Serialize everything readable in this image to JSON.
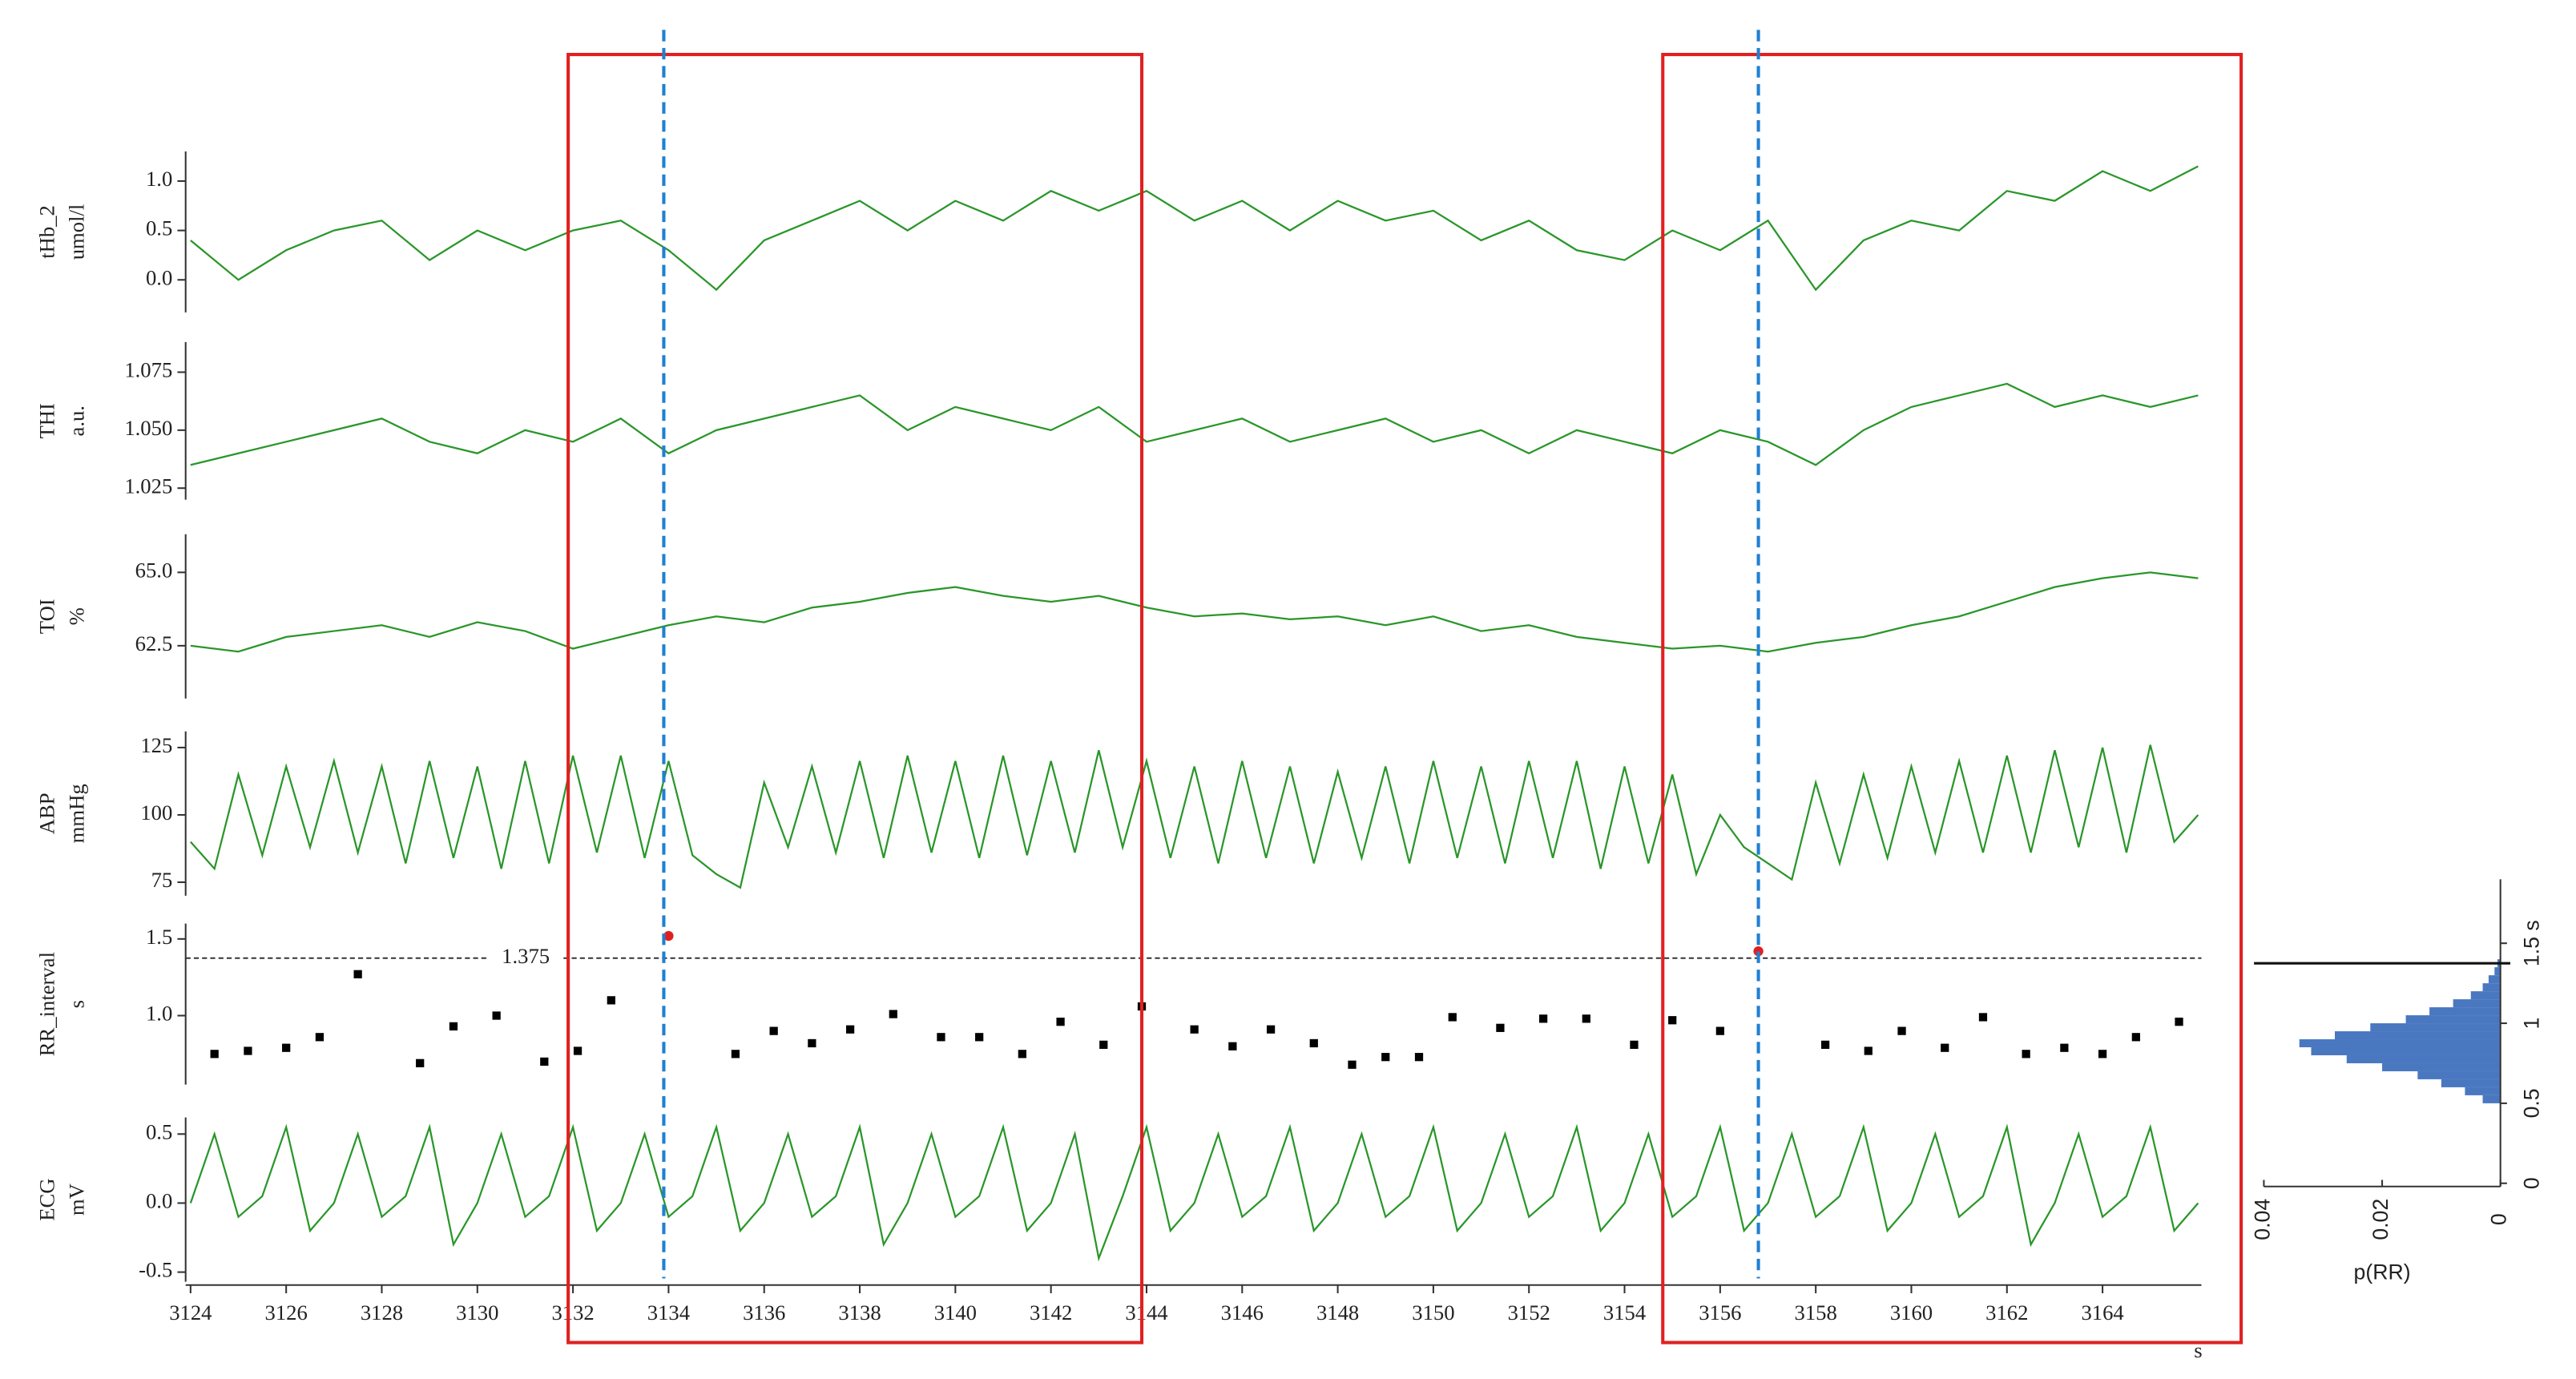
{
  "chart_data": [
    {
      "type": "line",
      "ylabel": "tHb_2",
      "yunit": "umol/l",
      "color": "#2a962a",
      "xlim": [
        3124,
        3166
      ],
      "ylim": [
        -0.33,
        1.3
      ],
      "yticks": [
        {
          "value": 0,
          "label": "0.0"
        },
        {
          "value": 0.5,
          "label": "0.5"
        },
        {
          "value": 1,
          "label": "1.0"
        }
      ],
      "x": [
        3124,
        3125,
        3126,
        3127,
        3128,
        3129,
        3130,
        3131,
        3132,
        3133,
        3134,
        3135,
        3136,
        3137,
        3138,
        3139,
        3140,
        3141,
        3142,
        3143,
        3144,
        3145,
        3146,
        3147,
        3148,
        3149,
        3150,
        3151,
        3152,
        3153,
        3154,
        3155,
        3156,
        3157,
        3158,
        3159,
        3160,
        3161,
        3162,
        3163,
        3164,
        3165,
        3166
      ],
      "values": [
        0.4,
        0.0,
        0.3,
        0.5,
        0.6,
        0.2,
        0.5,
        0.3,
        0.5,
        0.6,
        0.3,
        -0.1,
        0.4,
        0.6,
        0.8,
        0.5,
        0.8,
        0.6,
        0.9,
        0.7,
        0.9,
        0.6,
        0.8,
        0.5,
        0.8,
        0.6,
        0.7,
        0.4,
        0.6,
        0.3,
        0.2,
        0.5,
        0.3,
        0.6,
        -0.1,
        0.4,
        0.6,
        0.5,
        0.9,
        0.8,
        1.1,
        0.9,
        1.15
      ]
    },
    {
      "type": "line",
      "ylabel": "THI",
      "yunit": "a.u.",
      "color": "#2a962a",
      "xlim": [
        3124,
        3166
      ],
      "ylim": [
        1.02,
        1.088
      ],
      "yticks": [
        1.025,
        {
          "value": 1.05,
          "label": "1.050"
        },
        1.075
      ],
      "x": [
        3124,
        3125,
        3126,
        3127,
        3128,
        3129,
        3130,
        3131,
        3132,
        3133,
        3134,
        3135,
        3136,
        3137,
        3138,
        3139,
        3140,
        3141,
        3142,
        3143,
        3144,
        3145,
        3146,
        3147,
        3148,
        3149,
        3150,
        3151,
        3152,
        3153,
        3154,
        3155,
        3156,
        3157,
        3158,
        3159,
        3160,
        3161,
        3162,
        3163,
        3164,
        3165,
        3166
      ],
      "values": [
        1.035,
        1.04,
        1.045,
        1.05,
        1.055,
        1.045,
        1.04,
        1.05,
        1.045,
        1.055,
        1.04,
        1.05,
        1.055,
        1.06,
        1.065,
        1.05,
        1.06,
        1.055,
        1.05,
        1.06,
        1.045,
        1.05,
        1.055,
        1.045,
        1.05,
        1.055,
        1.045,
        1.05,
        1.04,
        1.05,
        1.045,
        1.04,
        1.05,
        1.045,
        1.035,
        1.05,
        1.06,
        1.065,
        1.07,
        1.06,
        1.065,
        1.06,
        1.065
      ]
    },
    {
      "type": "line",
      "ylabel": "TOI",
      "yunit": "%",
      "color": "#2a962a",
      "xlim": [
        3124,
        3166
      ],
      "ylim": [
        60.7,
        66.3
      ],
      "yticks": [
        62.5,
        {
          "value": 65,
          "label": "65.0"
        }
      ],
      "x": [
        3124,
        3125,
        3126,
        3127,
        3128,
        3129,
        3130,
        3131,
        3132,
        3133,
        3134,
        3135,
        3136,
        3137,
        3138,
        3139,
        3140,
        3141,
        3142,
        3143,
        3144,
        3145,
        3146,
        3147,
        3148,
        3149,
        3150,
        3151,
        3152,
        3153,
        3154,
        3155,
        3156,
        3157,
        3158,
        3159,
        3160,
        3161,
        3162,
        3163,
        3164,
        3165,
        3166
      ],
      "values": [
        62.5,
        62.3,
        62.8,
        63.0,
        63.2,
        62.8,
        63.3,
        63.0,
        62.4,
        62.8,
        63.2,
        63.5,
        63.3,
        63.8,
        64.0,
        64.3,
        64.5,
        64.2,
        64.0,
        64.2,
        63.8,
        63.5,
        63.6,
        63.4,
        63.5,
        63.2,
        63.5,
        63.0,
        63.2,
        62.8,
        62.6,
        62.4,
        62.5,
        62.3,
        62.6,
        62.8,
        63.2,
        63.5,
        64.0,
        64.5,
        64.8,
        65.0,
        64.8
      ]
    },
    {
      "type": "line",
      "ylabel": "ABP",
      "yunit": "mmHg",
      "color": "#2a962a",
      "xlim": [
        3124,
        3166
      ],
      "ylim": [
        70,
        131
      ],
      "yticks": [
        75,
        100,
        125
      ],
      "x": [
        3124,
        3124.5,
        3125,
        3125.5,
        3126,
        3126.5,
        3127,
        3127.5,
        3128,
        3128.5,
        3129,
        3129.5,
        3130,
        3130.5,
        3131,
        3131.5,
        3132,
        3132.5,
        3133,
        3133.5,
        3134,
        3134.5,
        3135,
        3135.5,
        3136,
        3136.5,
        3137,
        3137.5,
        3138,
        3138.5,
        3139,
        3139.5,
        3140,
        3140.5,
        3141,
        3141.5,
        3142,
        3142.5,
        3143,
        3143.5,
        3144,
        3144.5,
        3145,
        3145.5,
        3146,
        3146.5,
        3147,
        3147.5,
        3148,
        3148.5,
        3149,
        3149.5,
        3150,
        3150.5,
        3151,
        3151.5,
        3152,
        3152.5,
        3153,
        3153.5,
        3154,
        3154.5,
        3155,
        3155.5,
        3156,
        3156.5,
        3157,
        3157.5,
        3158,
        3158.5,
        3159,
        3159.5,
        3160,
        3160.5,
        3161,
        3161.5,
        3162,
        3162.5,
        3163,
        3163.5,
        3164,
        3164.5,
        3165,
        3165.5,
        3166
      ],
      "values": [
        90,
        80,
        115,
        85,
        118,
        88,
        120,
        86,
        118,
        82,
        120,
        84,
        118,
        80,
        120,
        82,
        122,
        86,
        122,
        84,
        120,
        85,
        78,
        73,
        112,
        88,
        118,
        86,
        120,
        84,
        122,
        86,
        120,
        84,
        122,
        85,
        120,
        86,
        124,
        88,
        120,
        84,
        118,
        82,
        120,
        84,
        118,
        82,
        116,
        84,
        118,
        82,
        120,
        84,
        118,
        82,
        120,
        84,
        120,
        80,
        118,
        82,
        115,
        78,
        100,
        88,
        82,
        76,
        112,
        82,
        115,
        84,
        118,
        86,
        120,
        86,
        122,
        86,
        124,
        88,
        125,
        86,
        126,
        90,
        100
      ]
    },
    {
      "type": "scatter",
      "ylabel": "RR_interval",
      "yunit": "s",
      "xlim": [
        3124,
        3166
      ],
      "ylim": [
        0.55,
        1.6
      ],
      "yticks": [
        {
          "value": 1,
          "label": "1.0"
        },
        1.5
      ],
      "threshold": 1.375,
      "series": [
        {
          "color": "#000000",
          "x": [
            3124.5,
            3125.2,
            3126.0,
            3126.7,
            3127.5,
            3128.8,
            3129.5,
            3130.4,
            3131.4,
            3132.1,
            3132.8,
            3135.4,
            3136.2,
            3137.0,
            3137.8,
            3138.7,
            3139.7,
            3140.5,
            3141.4,
            3142.2,
            3143.1,
            3143.9,
            3145.0,
            3145.8,
            3146.6,
            3147.5,
            3148.3,
            3149.0,
            3149.7,
            3150.4,
            3151.4,
            3152.3,
            3153.2,
            3154.2,
            3155.0,
            3156.0,
            3158.2,
            3159.1,
            3159.8,
            3160.7,
            3161.5,
            3162.4,
            3163.2,
            3164.0,
            3164.7,
            3165.6
          ],
          "values": [
            0.75,
            0.77,
            0.79,
            0.86,
            1.27,
            0.69,
            0.93,
            1.0,
            0.7,
            0.77,
            1.1,
            0.75,
            0.9,
            0.82,
            0.91,
            1.01,
            0.86,
            0.86,
            0.75,
            0.96,
            0.81,
            1.06,
            0.91,
            0.8,
            0.91,
            0.82,
            0.68,
            0.73,
            0.73,
            0.99,
            0.92,
            0.98,
            0.98,
            0.81,
            0.97,
            0.9,
            0.81,
            0.77,
            0.9,
            0.79,
            0.99,
            0.75,
            0.79,
            0.75,
            0.86,
            0.96
          ]
        },
        {
          "color": "#e02020",
          "x": [
            3134.0,
            3156.8
          ],
          "values": [
            1.52,
            1.42
          ]
        }
      ]
    },
    {
      "type": "line",
      "ylabel": "ECG",
      "yunit": "mV",
      "color": "#2a962a",
      "xlim": [
        3124,
        3166
      ],
      "ylim": [
        -0.57,
        0.62
      ],
      "yticks": [
        -0.5,
        {
          "value": 0,
          "label": "0.0"
        },
        0.5
      ],
      "xticks": [
        3124,
        3126,
        3128,
        3130,
        3132,
        3134,
        3136,
        3138,
        3140,
        3142,
        3144,
        3146,
        3148,
        3150,
        3152,
        3154,
        3156,
        3158,
        3160,
        3162,
        3164
      ],
      "xlabel": "s",
      "x": [
        3124,
        3124.5,
        3125,
        3125.5,
        3126,
        3126.5,
        3127,
        3127.5,
        3128,
        3128.5,
        3129,
        3129.5,
        3130,
        3130.5,
        3131,
        3131.5,
        3132,
        3132.5,
        3133,
        3133.5,
        3134,
        3134.5,
        3135,
        3135.5,
        3136,
        3136.5,
        3137,
        3137.5,
        3138,
        3138.5,
        3139,
        3139.5,
        3140,
        3140.5,
        3141,
        3141.5,
        3142,
        3142.5,
        3143,
        3143.5,
        3144,
        3144.5,
        3145,
        3145.5,
        3146,
        3146.5,
        3147,
        3147.5,
        3148,
        3148.5,
        3149,
        3149.5,
        3150,
        3150.5,
        3151,
        3151.5,
        3152,
        3152.5,
        3153,
        3153.5,
        3154,
        3154.5,
        3155,
        3155.5,
        3156,
        3156.5,
        3157,
        3157.5,
        3158,
        3158.5,
        3159,
        3159.5,
        3160,
        3160.5,
        3161,
        3161.5,
        3162,
        3162.5,
        3163,
        3163.5,
        3164,
        3164.5,
        3165,
        3165.5,
        3166
      ],
      "values": [
        0.0,
        0.5,
        -0.1,
        0.05,
        0.55,
        -0.2,
        0.0,
        0.5,
        -0.1,
        0.05,
        0.55,
        -0.3,
        0.0,
        0.5,
        -0.1,
        0.05,
        0.55,
        -0.2,
        0.0,
        0.5,
        -0.1,
        0.05,
        0.55,
        -0.2,
        0.0,
        0.5,
        -0.1,
        0.05,
        0.55,
        -0.3,
        0.0,
        0.5,
        -0.1,
        0.05,
        0.55,
        -0.2,
        0.0,
        0.5,
        -0.4,
        0.05,
        0.55,
        -0.2,
        0.0,
        0.5,
        -0.1,
        0.05,
        0.55,
        -0.2,
        0.0,
        0.5,
        -0.1,
        0.05,
        0.55,
        -0.2,
        0.0,
        0.5,
        -0.1,
        0.05,
        0.55,
        -0.2,
        0.0,
        0.5,
        -0.1,
        0.05,
        0.55,
        -0.2,
        0.0,
        0.5,
        -0.1,
        0.05,
        0.55,
        -0.2,
        0.0,
        0.5,
        -0.1,
        0.05,
        0.55,
        -0.3,
        0.0,
        0.5,
        -0.1,
        0.05,
        0.55,
        -0.2,
        0.0
      ]
    },
    {
      "type": "histogram",
      "xlabel": "p(RR)",
      "color": "#4a78c0",
      "xlim": [
        0.04,
        0
      ],
      "ylim": [
        -0.02,
        1.9
      ],
      "xticks": [
        0.04,
        0.02,
        0
      ],
      "yticks": [
        0,
        0.5,
        1,
        {
          "value": 1.5,
          "label": "1.5 s"
        }
      ],
      "threshold": 1.375,
      "bins": [
        0.5,
        0.55,
        0.6,
        0.65,
        0.7,
        0.75,
        0.8,
        0.85,
        0.9,
        0.95,
        1.0,
        1.05,
        1.1,
        1.15,
        1.2,
        1.25,
        1.3,
        1.35,
        1.4
      ],
      "values": [
        0.003,
        0.006,
        0.01,
        0.014,
        0.02,
        0.026,
        0.032,
        0.034,
        0.028,
        0.022,
        0.016,
        0.012,
        0.008,
        0.005,
        0.003,
        0.002,
        0.001,
        0.0005
      ]
    }
  ],
  "overlay": {
    "boxes": [
      [
        3131.9,
        3143.9
      ],
      [
        3154.8,
        3166.9
      ]
    ],
    "box_color": "#e02020",
    "cursors": [
      3133.9,
      3156.8
    ],
    "cursor_color": "#2080d0"
  }
}
